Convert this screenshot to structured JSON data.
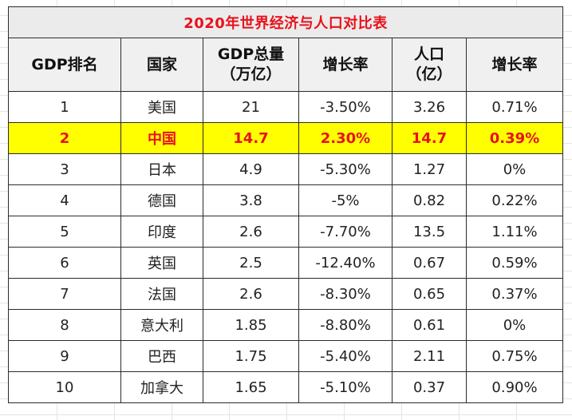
{
  "table": {
    "title": "2020年世界经济与人口对比表",
    "headers": [
      "GDP排名",
      "国家",
      "GDP总量\n（万亿）",
      "增长率",
      "人口\n（亿）",
      "增长率"
    ],
    "rows": [
      {
        "cells": [
          "1",
          "美国",
          "21",
          "-3.50%",
          "3.26",
          "0.71%"
        ]
      },
      {
        "cells": [
          "2",
          "中国",
          "14.7",
          "2.30%",
          "14.7",
          "0.39%"
        ],
        "highlight": true
      },
      {
        "cells": [
          "3",
          "日本",
          "4.9",
          "-5.30%",
          "1.27",
          "0%"
        ]
      },
      {
        "cells": [
          "4",
          "德国",
          "3.8",
          "-5%",
          "0.82",
          "0.22%"
        ]
      },
      {
        "cells": [
          "5",
          "印度",
          "2.6",
          "-7.70%",
          "13.5",
          "1.11%"
        ]
      },
      {
        "cells": [
          "6",
          "英国",
          "2.5",
          "-12.40%",
          "0.67",
          "0.59%"
        ]
      },
      {
        "cells": [
          "7",
          "法国",
          "2.6",
          "-8.30%",
          "0.65",
          "0.37%"
        ]
      },
      {
        "cells": [
          "8",
          "意大利",
          "1.85",
          "-8.80%",
          "0.61",
          "0%"
        ]
      },
      {
        "cells": [
          "9",
          "巴西",
          "1.75",
          "-5.40%",
          "2.11",
          "0.75%"
        ]
      },
      {
        "cells": [
          "10",
          "加拿大",
          "1.65",
          "-5.10%",
          "0.37",
          "0.90%"
        ]
      }
    ]
  },
  "colors": {
    "title_text": "#e8121c",
    "highlight_fill": "#ffff00",
    "highlight_text": "#e8121c",
    "zero_value_text": "#e8121c"
  }
}
